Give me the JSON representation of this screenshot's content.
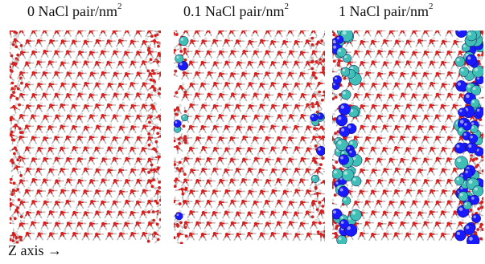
{
  "panels": [
    {
      "label": "0 NaCl pair/nm",
      "sup": "2",
      "ions": 0
    },
    {
      "label": "0.1 NaCl pair/nm",
      "sup": "2",
      "ions": 0.1
    },
    {
      "label": "1 NaCl pair/nm",
      "sup": "2",
      "ions": 1
    }
  ],
  "axis_label": "Z axis →",
  "colors": {
    "oxygen": "#d62020",
    "hydrogen": "#e8e8e8",
    "bond": "#b8b8b8",
    "sodium": "#1a1aff",
    "chlorine": "#3fbfb5"
  }
}
